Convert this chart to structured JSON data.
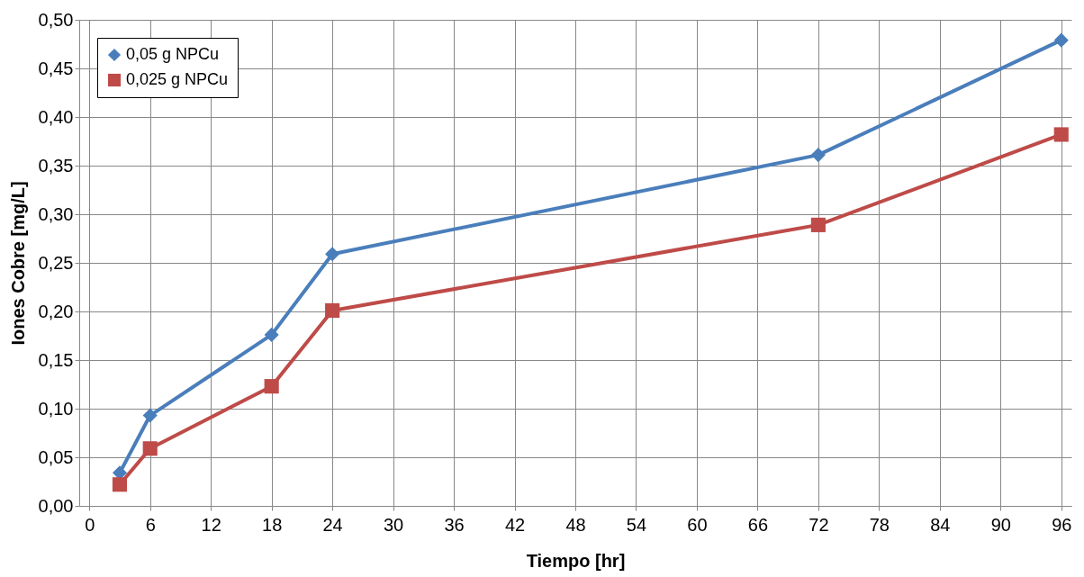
{
  "chart_data": {
    "type": "line",
    "xlabel": "Tiempo [hr]",
    "ylabel": "Iones Cobre [mg/L]",
    "xlim": [
      -1,
      97
    ],
    "xticks": [
      0,
      6,
      12,
      18,
      24,
      30,
      36,
      42,
      48,
      54,
      60,
      66,
      72,
      78,
      84,
      90,
      96
    ],
    "ylim": [
      0,
      0.5
    ],
    "yticks": [
      {
        "value": 0,
        "label": "0,00"
      },
      {
        "value": 0.05,
        "label": "0,05"
      },
      {
        "value": 0.1,
        "label": "0,10"
      },
      {
        "value": 0.15,
        "label": "0,15"
      },
      {
        "value": 0.2,
        "label": "0,20"
      },
      {
        "value": 0.25,
        "label": "0,25"
      },
      {
        "value": 0.3,
        "label": "0,30"
      },
      {
        "value": 0.35,
        "label": "0,35"
      },
      {
        "value": 0.4,
        "label": "0,40"
      },
      {
        "value": 0.45,
        "label": "0,45"
      },
      {
        "value": 0.5,
        "label": "0,50"
      }
    ],
    "grid": true,
    "legend": "top left",
    "line_style": "solid",
    "series": [
      {
        "name": "0,05 g NPCu",
        "color": "#4a7ebb",
        "marker": "diamond",
        "x": [
          3,
          6,
          18,
          24,
          72,
          96
        ],
        "values": [
          0.034,
          0.093,
          0.176,
          0.259,
          0.361,
          0.479
        ]
      },
      {
        "name": "0,025 g NPCu",
        "color": "#be4b48",
        "marker": "square",
        "x": [
          3,
          6,
          18,
          24,
          72,
          96
        ],
        "values": [
          0.022,
          0.059,
          0.123,
          0.201,
          0.289,
          0.382
        ]
      }
    ]
  }
}
